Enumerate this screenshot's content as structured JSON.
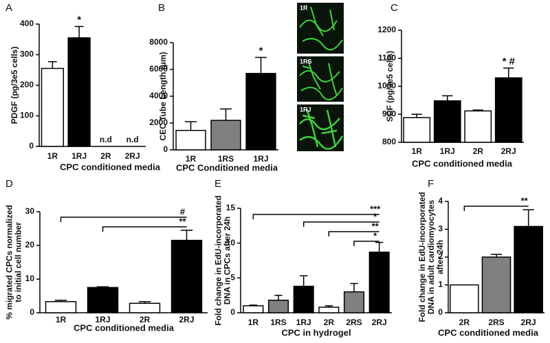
{
  "chart_data": [
    {
      "type": "bar",
      "panel": "A",
      "ylabel": [
        "PDGF (pg/3e5 cells)"
      ],
      "xlabel": "CPC conditioned media",
      "categories": [
        "1R",
        "1RJ",
        "2R",
        "2RJ"
      ],
      "values": [
        255,
        355,
        null,
        null
      ],
      "errors": [
        22,
        37,
        null,
        null
      ],
      "value_labels": [
        null,
        null,
        "n.d",
        "n.d"
      ],
      "bar_annotations": [
        null,
        "*",
        null,
        null
      ],
      "colors": [
        "#ffffff",
        "#000000",
        "#ffffff",
        "#000000"
      ],
      "ylim": [
        0,
        400
      ],
      "yticks": [
        0,
        100,
        200,
        300,
        400
      ]
    },
    {
      "type": "bar",
      "panel": "B",
      "ylabel": [
        "CEC Tube Length (μm)"
      ],
      "xlabel": "CPC Conditioned media",
      "categories": [
        "1R",
        "1RS",
        "1RJ"
      ],
      "values": [
        1450,
        2200,
        5700
      ],
      "errors": [
        650,
        850,
        1200
      ],
      "bar_annotations": [
        null,
        null,
        "*"
      ],
      "colors": [
        "#ffffff",
        "#808080",
        "#000000"
      ],
      "ylim": [
        0,
        8000
      ],
      "yticks": [
        0,
        2000,
        4000,
        6000,
        8000
      ],
      "image_labels": [
        "1R",
        "1RS",
        "1RJ"
      ]
    },
    {
      "type": "bar",
      "panel": "C",
      "ylabel": [
        "SCF (pg/3e5 cells)"
      ],
      "xlabel": "CPC conditioned media",
      "categories": [
        "1R",
        "1RJ",
        "2R",
        "2RJ"
      ],
      "values": [
        888,
        948,
        912,
        1030
      ],
      "errors": [
        12,
        18,
        3,
        35
      ],
      "bar_annotations": [
        null,
        null,
        null,
        "* #"
      ],
      "colors": [
        "#ffffff",
        "#000000",
        "#ffffff",
        "#000000"
      ],
      "ylim": [
        800,
        1200
      ],
      "yticks": [
        800,
        900,
        1000,
        1100,
        1200
      ]
    },
    {
      "type": "bar",
      "panel": "D",
      "ylabel": [
        "% migrated CPCs normalized",
        "to initial cell number"
      ],
      "xlabel": "CPC conditioned media",
      "categories": [
        "1R",
        "1RJ",
        "2R",
        "2RJ"
      ],
      "values": [
        3.3,
        7.5,
        2.8,
        21.5
      ],
      "errors": [
        0.4,
        0.2,
        0.5,
        3.0
      ],
      "colors": [
        "#ffffff",
        "#000000",
        "#ffffff",
        "#000000"
      ],
      "significance": [
        {
          "label": "#",
          "from": "1R",
          "to": "2RJ"
        },
        {
          "label": "**",
          "from": "1RJ",
          "to": "2RJ"
        }
      ],
      "ylim": [
        0,
        30
      ],
      "yticks": [
        0,
        10,
        20,
        30
      ]
    },
    {
      "type": "bar",
      "panel": "E",
      "ylabel": [
        "Fold change in EdU-incorporated",
        "DNA in CPCs after 24h"
      ],
      "xlabel": "CPC in hydrogel",
      "categories": [
        "1R",
        "1RS",
        "1RJ",
        "2R",
        "2RS",
        "2RJ"
      ],
      "values": [
        1.0,
        1.8,
        3.8,
        0.8,
        3.0,
        8.7
      ],
      "errors": [
        0.1,
        0.7,
        1.5,
        0.2,
        1.2,
        1.4
      ],
      "colors": [
        "#ffffff",
        "#808080",
        "#000000",
        "#ffffff",
        "#808080",
        "#000000"
      ],
      "significance": [
        {
          "label": "***",
          "from": "1R",
          "to": "2RJ"
        },
        {
          "label": "*",
          "from": "1RJ",
          "to": "2RJ"
        },
        {
          "label": "**",
          "from": "2R",
          "to": "2RJ"
        },
        {
          "label": "*",
          "from": "2RS",
          "to": "2RJ"
        }
      ],
      "ylim": [
        0,
        15
      ],
      "yticks": [
        0,
        5,
        10,
        15
      ]
    },
    {
      "type": "bar",
      "panel": "F",
      "ylabel": [
        "Fold change in EdU-incorporated",
        "DNA in adult cardiomyocytes",
        "after 24h"
      ],
      "xlabel": "CPC conditioned media",
      "categories": [
        "2R",
        "2RS",
        "2RJ"
      ],
      "values": [
        1.0,
        2.0,
        3.1
      ],
      "errors": [
        null,
        0.1,
        0.6
      ],
      "colors": [
        "#ffffff",
        "#808080",
        "#000000"
      ],
      "significance": [
        {
          "label": "**",
          "from": "2R",
          "to": "2RJ"
        }
      ],
      "ylim": [
        0,
        4
      ],
      "yticks": [
        0,
        1,
        2,
        3,
        4
      ]
    }
  ]
}
